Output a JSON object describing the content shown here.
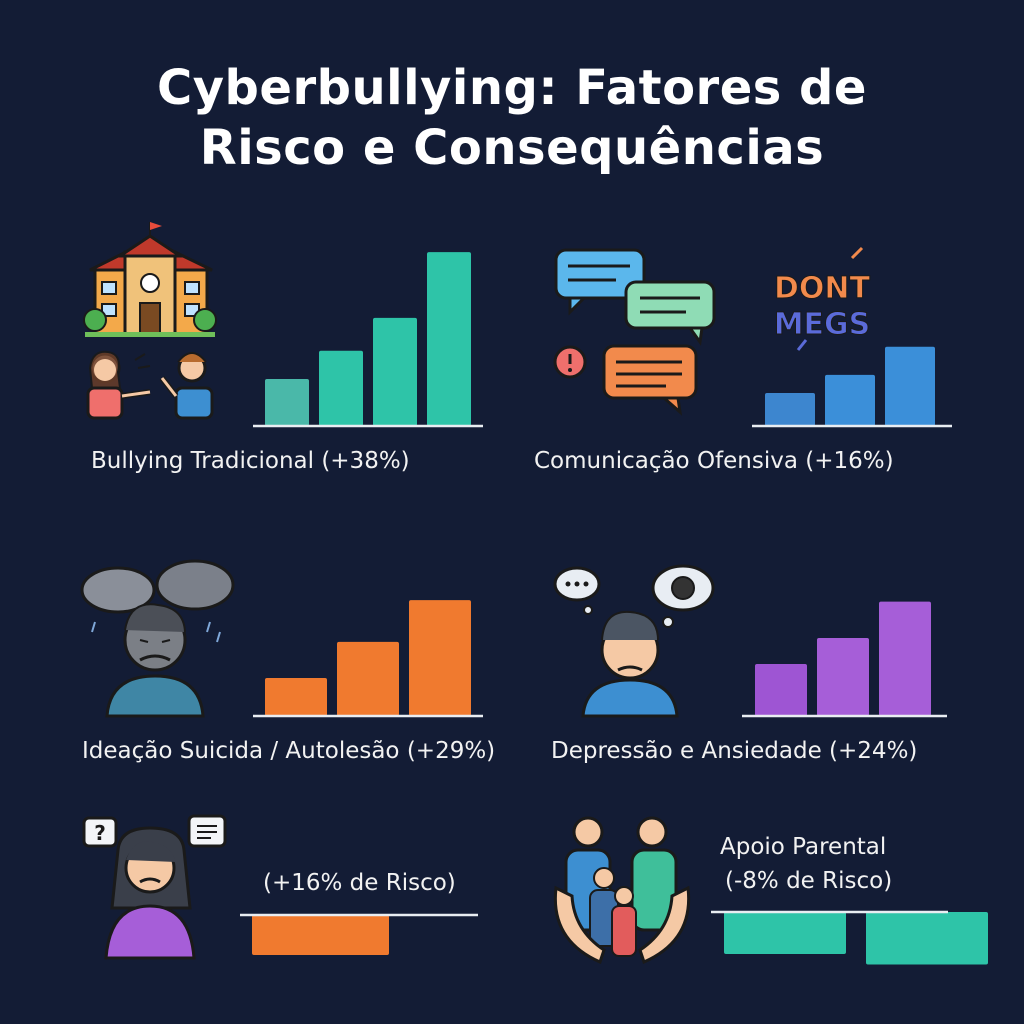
{
  "title": {
    "line1": "Cyberbullying: Fatores de",
    "line2": "Risco e Consequências"
  },
  "chart_data": [
    {
      "type": "bar",
      "label": "Bullying Tradicional (+38%)",
      "values": [
        1,
        1.6,
        2.3,
        3.7
      ],
      "color": "#2ec4a8",
      "colorLight": "#4ab8a9"
    },
    {
      "type": "bar",
      "label": "Comunicação Ofensiva (+16%)",
      "values": [
        1,
        1.55,
        2.4
      ],
      "color": "#3b8fd9",
      "colorLight": "#3d86cf"
    },
    {
      "type": "bar",
      "label": "Ideação Suicida / Autolesão (+29%)",
      "values": [
        1,
        1.95,
        3.05
      ],
      "color": "#f07a2f",
      "colorLight": "#f07a2f"
    },
    {
      "type": "bar",
      "label": "Depressão e Ansiedade (+24%)",
      "values": [
        1,
        1.5,
        2.2
      ],
      "color": "#a65ed8",
      "colorLight": "#9e55d3"
    },
    {
      "type": "bar",
      "label": "(+16% de Risco)",
      "values": [
        -1
      ],
      "color": "#f07a2f",
      "colorLight": "#f07a2f"
    },
    {
      "type": "bar",
      "label_line1": "Apoio Parental",
      "label_line2": "(-8% de Risco)",
      "values": [
        -1,
        -1.25
      ],
      "color": "#2ec4a8",
      "colorLight": "#2ec4a8"
    }
  ],
  "icons": {
    "p1": [
      "school-building-icon",
      "arguing-kids-icon"
    ],
    "p2": [
      "chat-bubbles-icon",
      "dont-mess-graffiti-icon"
    ],
    "p3": [
      "sad-person-rain-cloud-icon"
    ],
    "p4": [
      "anxious-person-thought-icon"
    ],
    "p5": [
      "confused-girl-icon"
    ],
    "p6": [
      "family-protect-hands-icon"
    ]
  },
  "graffiti_text": "DONT MEGS"
}
